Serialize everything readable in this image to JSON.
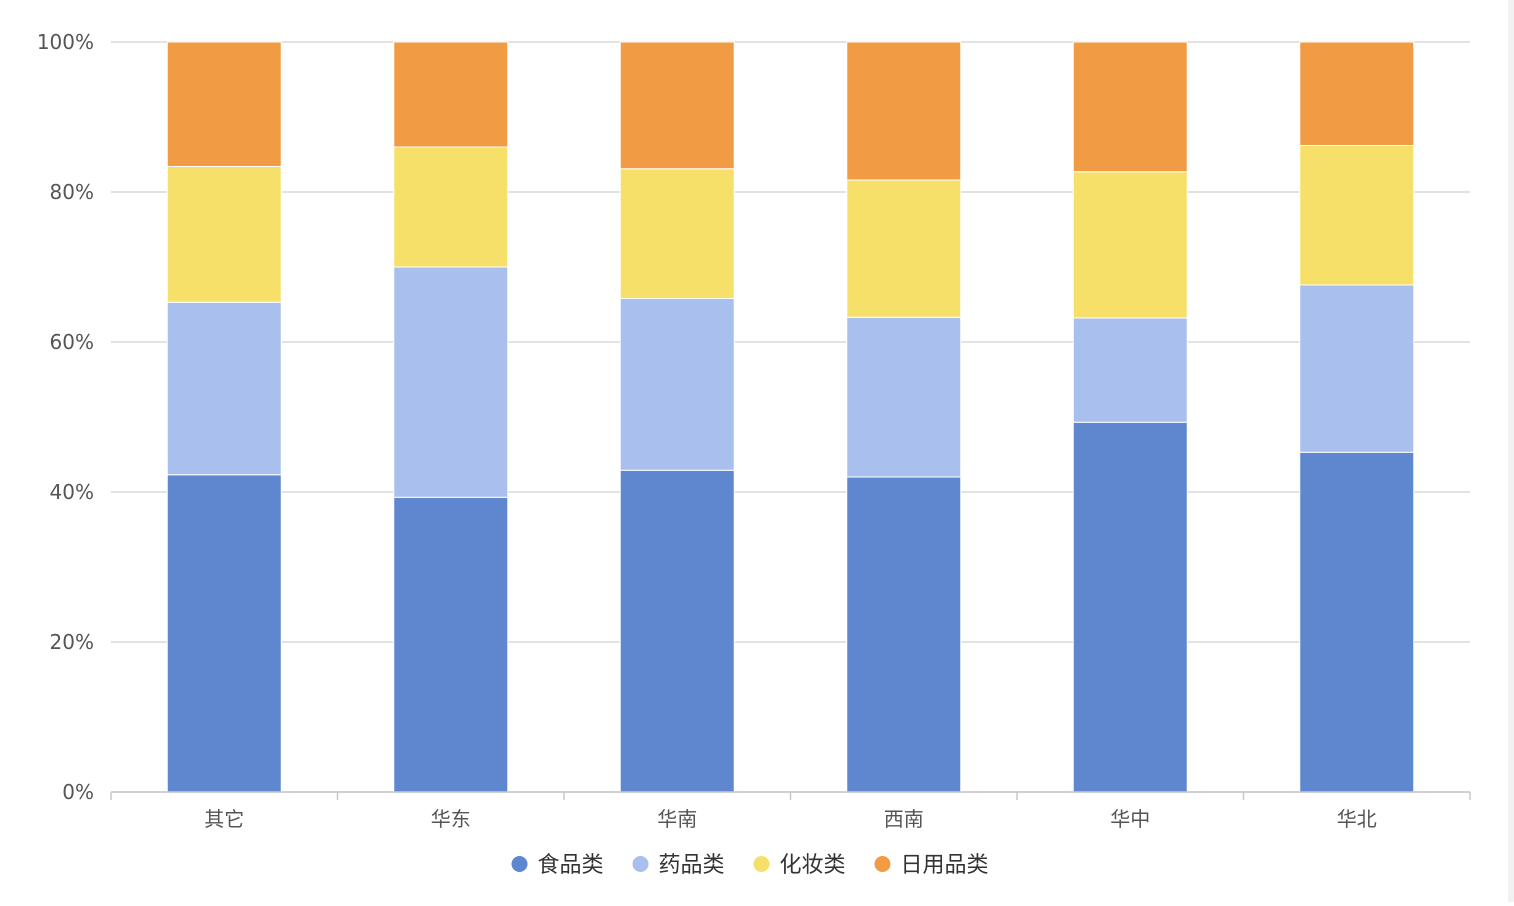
{
  "chart_data": {
    "type": "bar",
    "stacked": true,
    "normalized": true,
    "categories": [
      "其它",
      "华东",
      "华南",
      "西南",
      "华中",
      "华北"
    ],
    "series": [
      {
        "name": "食品类",
        "color": "#5f87cf",
        "values": [
          42.3,
          39.3,
          42.9,
          42.0,
          49.3,
          45.3
        ]
      },
      {
        "name": "药品类",
        "color": "#a9bfee",
        "values": [
          23.0,
          30.7,
          22.9,
          21.3,
          13.9,
          22.3
        ]
      },
      {
        "name": "化妆类",
        "color": "#f6e06a",
        "values": [
          18.1,
          16.0,
          17.3,
          18.3,
          19.5,
          18.6
        ]
      },
      {
        "name": "日用品类",
        "color": "#f29b45",
        "values": [
          16.6,
          14.0,
          16.9,
          18.4,
          17.3,
          13.8
        ]
      }
    ],
    "yticks": [
      "0%",
      "20%",
      "40%",
      "60%",
      "80%",
      "100%"
    ],
    "ylim": [
      0,
      100
    ],
    "grid": true,
    "legend_position": "bottom"
  }
}
